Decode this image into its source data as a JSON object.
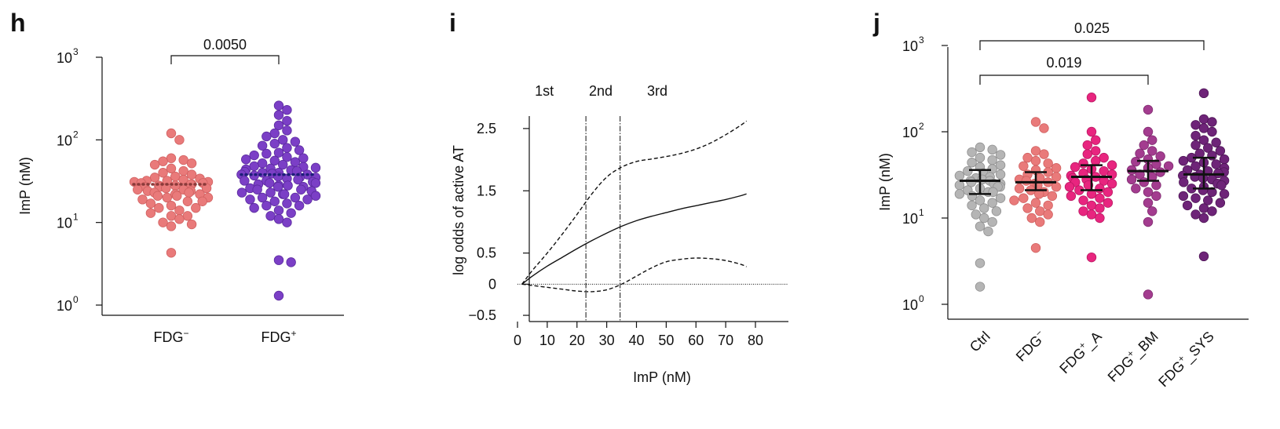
{
  "colors": {
    "fdg_minus": "#E97A7A",
    "fdg_plus": "#7B3FC6",
    "ctrl": "#B5B5B5",
    "fdg_plus_A": "#E8257F",
    "fdg_plus_BM": "#A33C8F",
    "fdg_plus_SYS": "#6E2478",
    "median_h_minus": "#8B3A3A",
    "median_h_plus": "#1E1E7A"
  },
  "chart_data": [
    {
      "panel": "h",
      "type": "scatter",
      "ylabel": "ImP (nM)",
      "y_scale": "log",
      "ylim": [
        1,
        1000
      ],
      "y_ticks": [
        {
          "value": 1,
          "base": "10",
          "exp": "0"
        },
        {
          "value": 10,
          "base": "10",
          "exp": "1"
        },
        {
          "value": 100,
          "base": "10",
          "exp": "2"
        },
        {
          "value": 1000,
          "base": "10",
          "exp": "3"
        }
      ],
      "categories": [
        {
          "base": "FDG",
          "sup": "−"
        },
        {
          "base": "FDG",
          "sup": "+"
        }
      ],
      "series": [
        {
          "median": 29,
          "values": [
            4.3,
            9,
            9.5,
            10,
            11,
            12,
            12,
            13,
            14,
            15,
            15,
            16,
            17,
            18,
            18,
            19,
            20,
            20,
            21,
            21,
            22,
            22,
            23,
            23,
            24,
            24,
            25,
            25,
            26,
            26,
            27,
            27,
            28,
            28,
            29,
            29,
            30,
            30,
            31,
            31,
            32,
            32,
            33,
            34,
            35,
            36,
            38,
            40,
            42,
            45,
            50,
            52,
            55,
            57,
            60,
            100,
            120
          ]
        },
        {
          "median": 38,
          "values": [
            1.3,
            3.3,
            3.5,
            10,
            11,
            12,
            13,
            14,
            15,
            16,
            16,
            17,
            18,
            19,
            19,
            20,
            20,
            21,
            22,
            22,
            23,
            23,
            24,
            25,
            25,
            26,
            27,
            27,
            28,
            28,
            29,
            30,
            30,
            31,
            32,
            32,
            33,
            34,
            35,
            35,
            36,
            37,
            38,
            38,
            39,
            40,
            40,
            41,
            42,
            43,
            44,
            45,
            46,
            47,
            48,
            50,
            52,
            54,
            56,
            58,
            60,
            62,
            65,
            68,
            70,
            75,
            80,
            85,
            90,
            95,
            100,
            110,
            120,
            130,
            150,
            170,
            200,
            230,
            260
          ]
        }
      ],
      "annotations": [
        {
          "text": "0.0050",
          "from": 0,
          "to": 1
        }
      ]
    },
    {
      "panel": "i",
      "type": "line",
      "xlabel": "ImP (nM)",
      "ylabel": "log odds of active AT",
      "xlim": [
        0,
        80
      ],
      "ylim": [
        -0.6,
        2.7
      ],
      "x_ticks": [
        "0",
        "10",
        "20",
        "30",
        "40",
        "50",
        "60",
        "70",
        "80"
      ],
      "y_ticks": [
        {
          "value": 2.5,
          "label": "2.5"
        },
        {
          "value": 1.5,
          "label": "1.5"
        },
        {
          "value": 0.5,
          "label": "0.5"
        },
        {
          "value": 0,
          "label": "0"
        },
        {
          "value": -0.5,
          "label": "−0.5"
        }
      ],
      "vlines": [
        23,
        34.5
      ],
      "hline": 0,
      "region_labels": [
        {
          "text": "1st",
          "x": 9
        },
        {
          "text": "2nd",
          "x": 28
        },
        {
          "text": "3rd",
          "x": 47
        }
      ],
      "x": [
        1.5,
        5,
        10,
        15,
        20,
        25,
        30,
        35,
        40,
        45,
        50,
        55,
        60,
        65,
        70,
        75,
        77
      ],
      "series": [
        {
          "style": "solid",
          "values": [
            0.0,
            0.13,
            0.29,
            0.43,
            0.57,
            0.7,
            0.82,
            0.93,
            1.02,
            1.09,
            1.15,
            1.21,
            1.26,
            1.31,
            1.36,
            1.42,
            1.45
          ]
        },
        {
          "style": "dashed",
          "values": [
            0.0,
            0.22,
            0.5,
            0.8,
            1.12,
            1.45,
            1.72,
            1.88,
            1.97,
            2.01,
            2.05,
            2.1,
            2.17,
            2.27,
            2.4,
            2.55,
            2.62
          ]
        },
        {
          "style": "dashed",
          "values": [
            0.0,
            -0.02,
            -0.05,
            -0.08,
            -0.11,
            -0.12,
            -0.09,
            0.0,
            0.13,
            0.26,
            0.36,
            0.4,
            0.42,
            0.41,
            0.38,
            0.32,
            0.28
          ]
        }
      ]
    },
    {
      "panel": "j",
      "type": "scatter",
      "ylabel": "ImP (nM)",
      "y_scale": "log",
      "ylim": [
        1,
        1000
      ],
      "y_ticks": [
        {
          "value": 1,
          "base": "10",
          "exp": "0"
        },
        {
          "value": 10,
          "base": "10",
          "exp": "1"
        },
        {
          "value": 100,
          "base": "10",
          "exp": "2"
        },
        {
          "value": 1000,
          "base": "10",
          "exp": "3"
        }
      ],
      "categories": [
        {
          "base": "Ctrl",
          "sup": "",
          "suffix": ""
        },
        {
          "base": "FDG",
          "sup": "−",
          "suffix": ""
        },
        {
          "base": "FDG",
          "sup": "+",
          "suffix": "_A"
        },
        {
          "base": "FDG",
          "sup": "+",
          "suffix": "_BM"
        },
        {
          "base": "FDG",
          "sup": "+",
          "suffix": "_SYS"
        }
      ],
      "series": [
        {
          "median": 27,
          "q1": 19,
          "q3": 36,
          "values": [
            1.6,
            3.0,
            7,
            8,
            9,
            10,
            11,
            12,
            13,
            14,
            15,
            16,
            17,
            18,
            19,
            20,
            20,
            21,
            22,
            23,
            23,
            24,
            25,
            25,
            26,
            27,
            27,
            28,
            29,
            30,
            31,
            32,
            33,
            35,
            37,
            39,
            41,
            44,
            47,
            50,
            54,
            58,
            62,
            66
          ]
        },
        {
          "median": 26,
          "q1": 21,
          "q3": 34,
          "values": [
            4.5,
            9,
            10,
            11,
            12,
            13,
            14,
            15,
            16,
            17,
            18,
            19,
            20,
            21,
            22,
            23,
            24,
            25,
            26,
            27,
            28,
            29,
            30,
            32,
            34,
            36,
            38,
            40,
            43,
            46,
            50,
            55,
            60,
            110,
            130
          ]
        },
        {
          "median": 30,
          "q1": 21,
          "q3": 41,
          "values": [
            3.5,
            10,
            11,
            12,
            13,
            14,
            15,
            16,
            17,
            18,
            19,
            20,
            21,
            22,
            23,
            24,
            25,
            26,
            27,
            28,
            29,
            30,
            31,
            32,
            33,
            35,
            37,
            39,
            41,
            43,
            46,
            50,
            55,
            60,
            70,
            80,
            100,
            250
          ]
        },
        {
          "median": 35,
          "q1": 27,
          "q3": 46,
          "values": [
            1.3,
            9,
            12,
            15,
            18,
            20,
            22,
            24,
            26,
            28,
            30,
            32,
            34,
            36,
            38,
            40,
            42,
            45,
            48,
            52,
            56,
            60,
            70,
            80,
            100,
            180
          ]
        },
        {
          "median": 32,
          "q1": 22,
          "q3": 50,
          "values": [
            3.6,
            10,
            11,
            12,
            13,
            14,
            15,
            16,
            17,
            18,
            19,
            20,
            21,
            22,
            23,
            24,
            25,
            26,
            27,
            28,
            29,
            30,
            31,
            32,
            33,
            34,
            35,
            36,
            38,
            40,
            42,
            44,
            46,
            48,
            50,
            53,
            56,
            60,
            65,
            70,
            75,
            80,
            90,
            100,
            110,
            120,
            130,
            140,
            280
          ]
        }
      ],
      "annotations": [
        {
          "text": "0.025",
          "from": 0,
          "to": 4
        },
        {
          "text": "0.019",
          "from": 0,
          "to": 3
        }
      ]
    }
  ]
}
